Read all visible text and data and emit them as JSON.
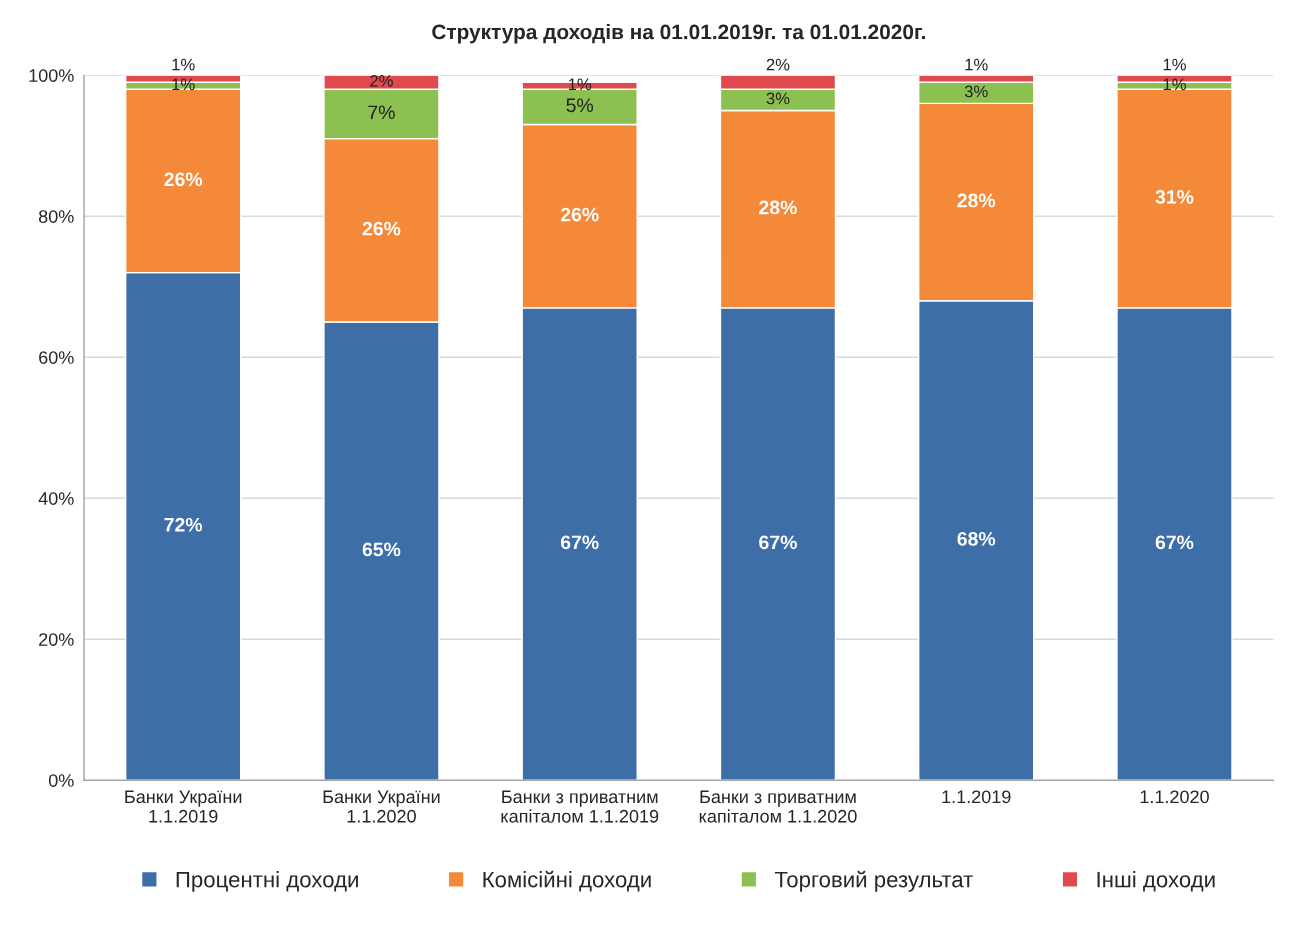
{
  "chart_data": {
    "type": "bar",
    "stacked": true,
    "title": "Структура доходів на 01.01.2019г. та 01.01.2020г.",
    "categories": [
      "Банки України\n1.1.2019",
      "Банки України\n1.1.2020",
      "Банки з приватним\nкапіталом 1.1.2019",
      "Банки з приватним\nкапіталом 1.1.2020",
      "1.1.2019",
      "1.1.2020"
    ],
    "series": [
      {
        "name": "Процентні доходи",
        "color": "#3d6ea8",
        "values": [
          72,
          65,
          67,
          67,
          68,
          67
        ],
        "value_labels": [
          "72%",
          "65%",
          "67%",
          "67%",
          "68%",
          "67%"
        ]
      },
      {
        "name": "Комісійні доходи",
        "color": "#f5893a",
        "values": [
          26,
          26,
          26,
          28,
          28,
          31
        ],
        "value_labels": [
          "26%",
          "26%",
          "26%",
          "28%",
          "28%",
          "31%"
        ]
      },
      {
        "name": "Торговий результат",
        "color": "#8cc152",
        "values": [
          1,
          7,
          5,
          3,
          3,
          1
        ],
        "value_labels": [
          "1%",
          "7%",
          "5%",
          "3%",
          "3%",
          "1%"
        ]
      },
      {
        "name": "Інші доходи",
        "color": "#df4a4f",
        "values": [
          1,
          2,
          1,
          2,
          1,
          1
        ],
        "value_labels": [
          "1%",
          "2%",
          "1%",
          "2%",
          "1%",
          "1%"
        ]
      }
    ],
    "ylim": [
      0,
      100
    ],
    "yticks": [
      {
        "value": 0,
        "label": "0%"
      },
      {
        "value": 20,
        "label": "20%"
      },
      {
        "value": 40,
        "label": "40%"
      },
      {
        "value": 60,
        "label": "60%"
      },
      {
        "value": 80,
        "label": "80%"
      },
      {
        "value": 100,
        "label": "100%"
      }
    ],
    "grid": "y",
    "legend": "bottom"
  }
}
